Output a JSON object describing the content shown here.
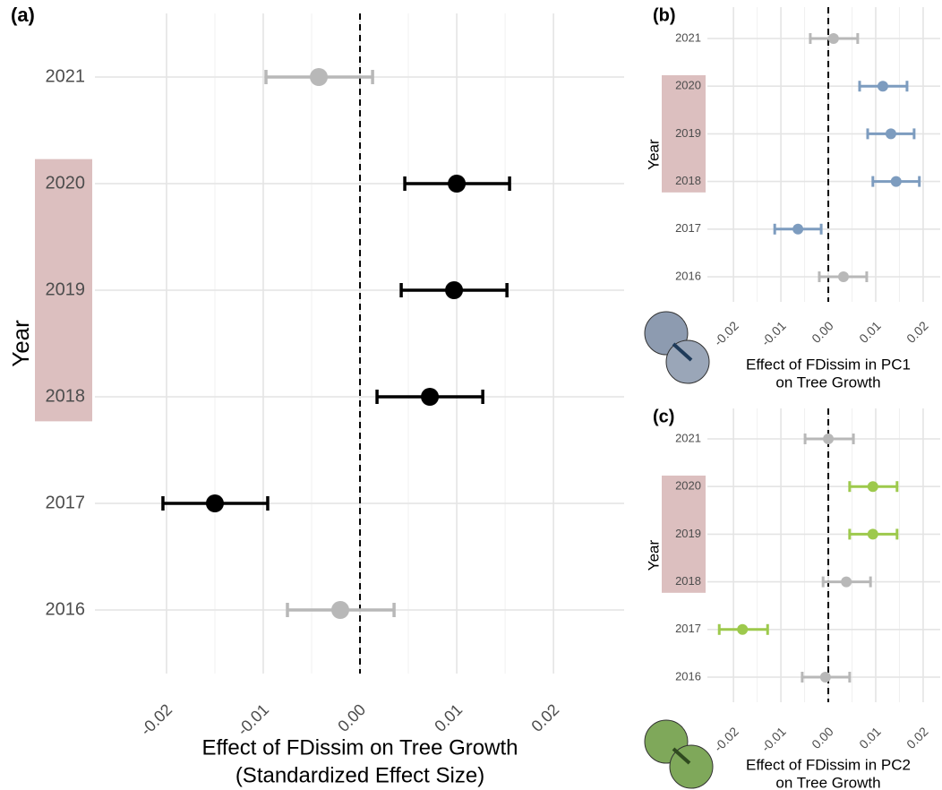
{
  "chart_data": [
    {
      "type": "errorbar",
      "panel_label": "(a)",
      "categories": [
        "2021",
        "2020",
        "2019",
        "2018",
        "2017",
        "2016"
      ],
      "values": [
        -0.00426,
        0.01,
        0.00972,
        0.00722,
        -0.015,
        -0.00204
      ],
      "lower": [
        -0.00972,
        0.00463,
        0.00426,
        0.00176,
        -0.02037,
        -0.0075
      ],
      "upper": [
        0.0013,
        0.01546,
        0.01519,
        0.01269,
        -0.00954,
        0.00352
      ],
      "colors": [
        "#b8b8b8",
        "#000000",
        "#000000",
        "#000000",
        "#000000",
        "#b8b8b8"
      ],
      "xlim": [
        -0.0274,
        0.0273
      ],
      "xticks": [
        -0.02,
        -0.01,
        {
          "value": 0,
          "label": "0.00"
        },
        0.01,
        0.02
      ],
      "vline": 0,
      "grid": true,
      "highlight": [
        "2020",
        "2019",
        "2018"
      ],
      "highlight_color": "#dcbfbf",
      "xlabel": [
        "Effect of FDissim on Tree Growth",
        "(Standardized Effect Size)"
      ],
      "ylabel": "Year"
    },
    {
      "type": "errorbar",
      "panel_label": "(b)",
      "categories": [
        "2021",
        "2020",
        "2019",
        "2018",
        "2017",
        "2016"
      ],
      "values": [
        0.0011,
        0.0115,
        0.0132,
        0.0143,
        -0.0064,
        0.0032
      ],
      "lower": [
        -0.0038,
        0.0066,
        0.0083,
        0.0094,
        -0.0113,
        -0.0019
      ],
      "upper": [
        0.0062,
        0.0166,
        0.0181,
        0.0192,
        -0.0015,
        0.0081
      ],
      "colors": [
        "#b8b8b8",
        "#7d9cbf",
        "#7d9cbf",
        "#7d9cbf",
        "#7d9cbf",
        "#b8b8b8"
      ],
      "xlim": [
        -0.0255,
        0.0236
      ],
      "xticks": [
        -0.02,
        -0.01,
        {
          "value": 0,
          "label": "0.00"
        },
        0.01,
        0.02
      ],
      "vline": 0,
      "grid": true,
      "highlight": [
        "2020",
        "2019",
        "2018"
      ],
      "highlight_color": "#dcbfbf",
      "xlabel": [
        "Effect of FDissim in PC1",
        "on Tree Growth"
      ],
      "ylabel": "Year"
    },
    {
      "type": "errorbar",
      "panel_label": "(c)",
      "categories": [
        "2021",
        "2020",
        "2019",
        "2018",
        "2017",
        "2016"
      ],
      "values": [
        0.0,
        0.0094,
        0.0094,
        0.0038,
        -0.0181,
        -0.0006
      ],
      "lower": [
        -0.0049,
        0.0045,
        0.0045,
        -0.0011,
        -0.023,
        -0.0055
      ],
      "upper": [
        0.0053,
        0.0145,
        0.0145,
        0.0089,
        -0.0128,
        0.0045
      ],
      "colors": [
        "#b8b8b8",
        "#9dc94c",
        "#9dc94c",
        "#b8b8b8",
        "#9dc94c",
        "#b8b8b8"
      ],
      "xlim": [
        -0.0255,
        0.0236
      ],
      "xticks": [
        -0.02,
        -0.01,
        {
          "value": 0,
          "label": "0.00"
        },
        0.01,
        0.02
      ],
      "vline": 0,
      "grid": true,
      "highlight": [
        "2020",
        "2019",
        "2018"
      ],
      "highlight_color": "#dcbfbf",
      "xlabel": [
        "Effect of FDissim in PC2",
        "on Tree Growth"
      ],
      "ylabel": "Year"
    }
  ]
}
